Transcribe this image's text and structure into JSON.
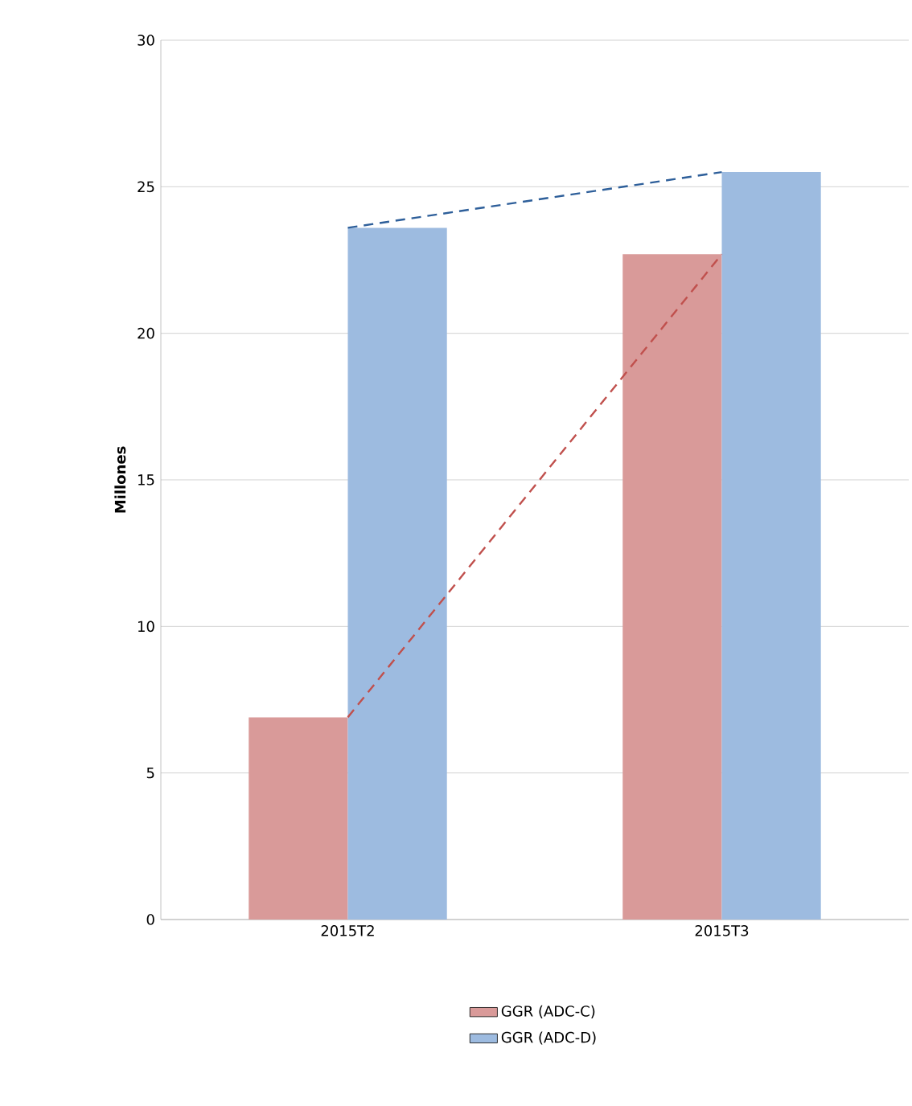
{
  "chart_data": {
    "type": "bar",
    "ylabel": "Millones",
    "categories": [
      "2015T2",
      "2015T3"
    ],
    "series": [
      {
        "name": "GGR (ADC-C)",
        "color": "#d99a99",
        "values": [
          6.9,
          22.7
        ]
      },
      {
        "name": "GGR (ADC-D)",
        "color": "#9dbbe0",
        "values": [
          23.6,
          25.5
        ]
      },
      {
        "type": "line",
        "color": "#c0504d",
        "line_style": "dashed",
        "values": [
          6.9,
          22.7
        ]
      },
      {
        "type": "line",
        "color": "#2e5f9a",
        "line_style": "dashed",
        "values": [
          23.6,
          25.5
        ]
      }
    ],
    "ylim": [
      0,
      30
    ],
    "yticks": [
      0,
      5,
      10,
      15,
      20,
      25,
      30
    ],
    "grid": "y",
    "legend": "bottom"
  }
}
